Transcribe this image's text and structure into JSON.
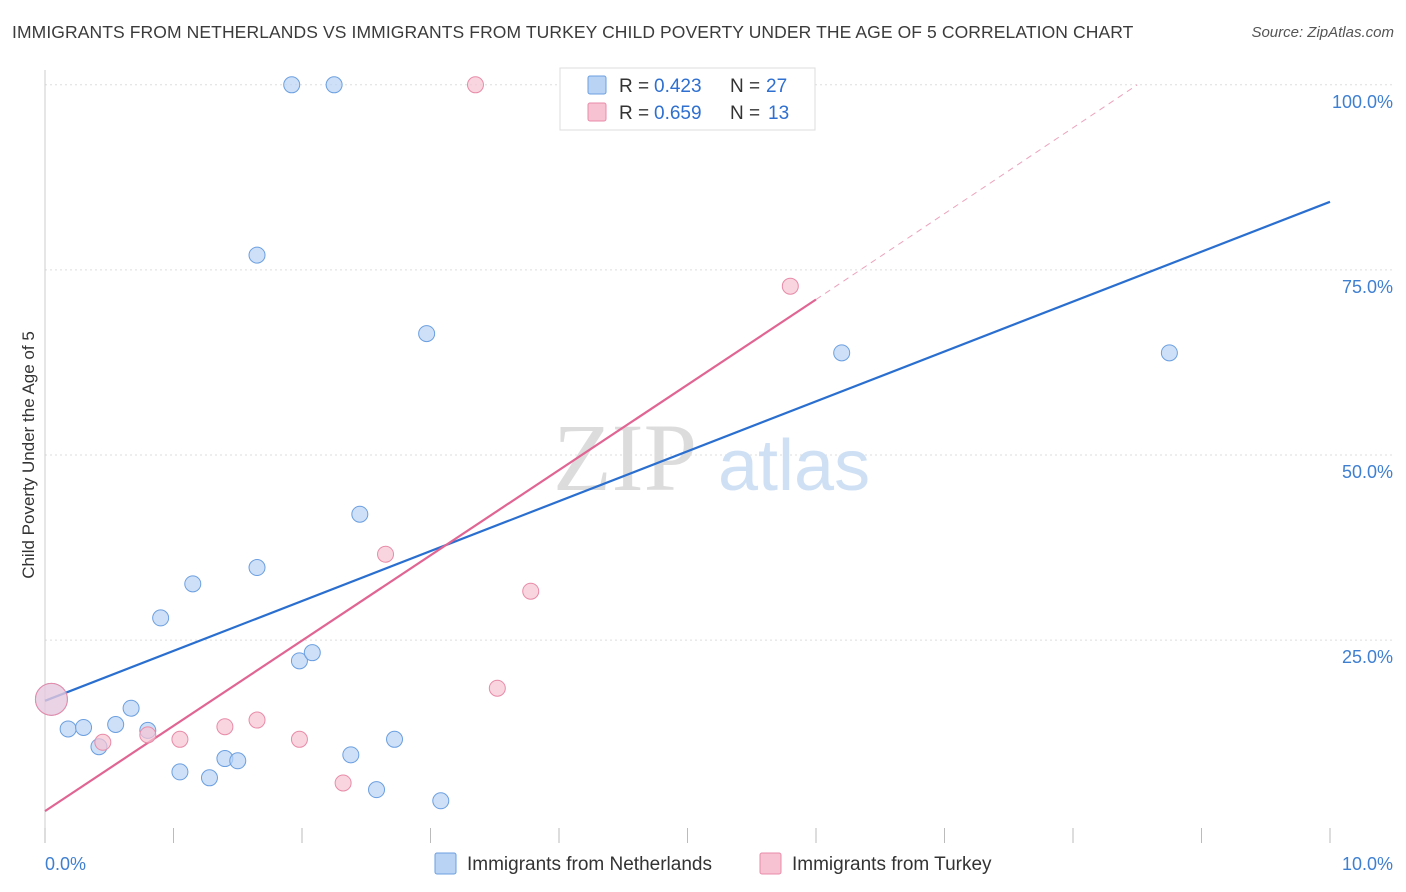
{
  "title": "IMMIGRANTS FROM NETHERLANDS VS IMMIGRANTS FROM TURKEY CHILD POVERTY UNDER THE AGE OF 5 CORRELATION CHART",
  "source": "Source: ZipAtlas.com",
  "watermark": {
    "zip": "ZIP",
    "atlas": "atlas"
  },
  "colors": {
    "netherlands_fill": "#b9d3f5",
    "netherlands_stroke": "#6b9fe0",
    "netherlands_line": "#2a6fcf",
    "turkey_fill": "#f7c3d3",
    "turkey_stroke": "#e88ba8",
    "turkey_line": "#e06592",
    "tick_text": "#3f7fd1",
    "grid": "#dddddd"
  },
  "legend": {
    "r_label": "R = ",
    "n_label": "N = ",
    "entries": [
      {
        "r": "0.423",
        "n": "27"
      },
      {
        "r": "0.659",
        "n": "13"
      }
    ]
  },
  "chart_data": {
    "type": "scatter",
    "title": "IMMIGRANTS FROM NETHERLANDS VS IMMIGRANTS FROM TURKEY CHILD POVERTY UNDER THE AGE OF 5 CORRELATION CHART",
    "xlabel": "",
    "ylabel": "Child Poverty Under the Age of 5",
    "xlim": [
      0,
      10
    ],
    "ylim": [
      -2,
      102
    ],
    "x_tick_labels": [
      "0.0%",
      "10.0%"
    ],
    "y_ticks": [
      25,
      50,
      75,
      100
    ],
    "y_tick_labels": [
      "25.0%",
      "50.0%",
      "75.0%",
      "100.0%"
    ],
    "grid": true,
    "legend_position": "top-center",
    "series": [
      {
        "name": "Immigrants from Netherlands",
        "points": [
          [
            0.05,
            17.0
          ],
          [
            0.18,
            13.0
          ],
          [
            0.3,
            13.2
          ],
          [
            0.42,
            10.6
          ],
          [
            0.55,
            13.6
          ],
          [
            0.67,
            15.8
          ],
          [
            0.8,
            12.8
          ],
          [
            0.9,
            28.0
          ],
          [
            1.05,
            7.2
          ],
          [
            1.15,
            32.6
          ],
          [
            1.28,
            6.4
          ],
          [
            1.4,
            9.0
          ],
          [
            1.5,
            8.7
          ],
          [
            1.65,
            77.0
          ],
          [
            1.65,
            34.8
          ],
          [
            1.92,
            100.0
          ],
          [
            1.98,
            22.2
          ],
          [
            2.08,
            23.3
          ],
          [
            2.25,
            100.0
          ],
          [
            2.38,
            9.5
          ],
          [
            2.45,
            42.0
          ],
          [
            2.58,
            4.8
          ],
          [
            2.72,
            11.6
          ],
          [
            2.97,
            66.4
          ],
          [
            3.08,
            3.3
          ],
          [
            6.2,
            63.8
          ],
          [
            8.75,
            63.8
          ]
        ],
        "trend": {
          "x": [
            0.0,
            10.0
          ],
          "y": [
            16.8,
            84.2
          ]
        }
      },
      {
        "name": "Immigrants from Turkey",
        "points": [
          [
            0.05,
            17.0
          ],
          [
            0.45,
            11.2
          ],
          [
            0.8,
            12.2
          ],
          [
            1.05,
            11.6
          ],
          [
            1.4,
            13.3
          ],
          [
            1.65,
            14.2
          ],
          [
            1.98,
            11.6
          ],
          [
            2.32,
            5.7
          ],
          [
            2.65,
            36.6
          ],
          [
            3.35,
            100.0
          ],
          [
            3.52,
            18.5
          ],
          [
            3.78,
            31.6
          ],
          [
            5.8,
            72.8
          ]
        ],
        "trend": {
          "x": [
            0.0,
            6.0
          ],
          "y": [
            1.9,
            71.0
          ]
        },
        "trend_extension": {
          "x": [
            6.0,
            8.5
          ],
          "y": [
            71.0,
            100.0
          ]
        }
      }
    ]
  }
}
